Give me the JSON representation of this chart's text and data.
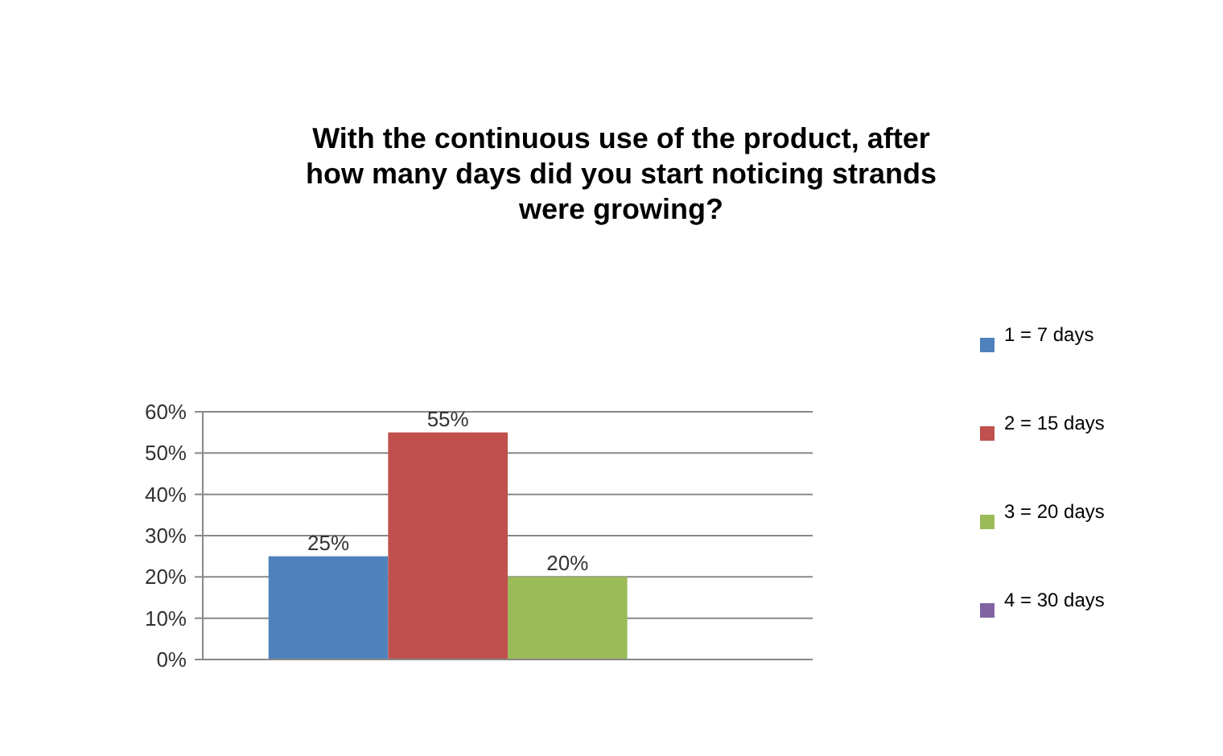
{
  "chart_data": {
    "type": "bar",
    "title": "With the continuous use of the product, after how many days did you start noticing strands were growing?",
    "categories": [
      null
    ],
    "series": [
      {
        "name": "1 = 7 days",
        "color": "#4f81bd",
        "values": [
          25
        ],
        "value_labels": [
          "25%"
        ]
      },
      {
        "name": "2 = 15 days",
        "color": "#c0504d",
        "values": [
          55
        ],
        "value_labels": [
          "55%"
        ]
      },
      {
        "name": "3 = 20 days",
        "color": "#9bbb59",
        "values": [
          20
        ],
        "value_labels": [
          "20%"
        ]
      },
      {
        "name": "4 = 30 days",
        "color": "#8064a2",
        "values": [
          0
        ],
        "value_labels": [
          null
        ]
      }
    ],
    "ylim": [
      0,
      60
    ],
    "yticks": [
      {
        "value": 0,
        "label": "0%"
      },
      {
        "value": 10,
        "label": "10%"
      },
      {
        "value": 20,
        "label": "20%"
      },
      {
        "value": 30,
        "label": "30%"
      },
      {
        "value": 40,
        "label": "40%"
      },
      {
        "value": 50,
        "label": "50%"
      },
      {
        "value": 60,
        "label": "60%"
      }
    ],
    "grid": "y",
    "legend": "right"
  }
}
